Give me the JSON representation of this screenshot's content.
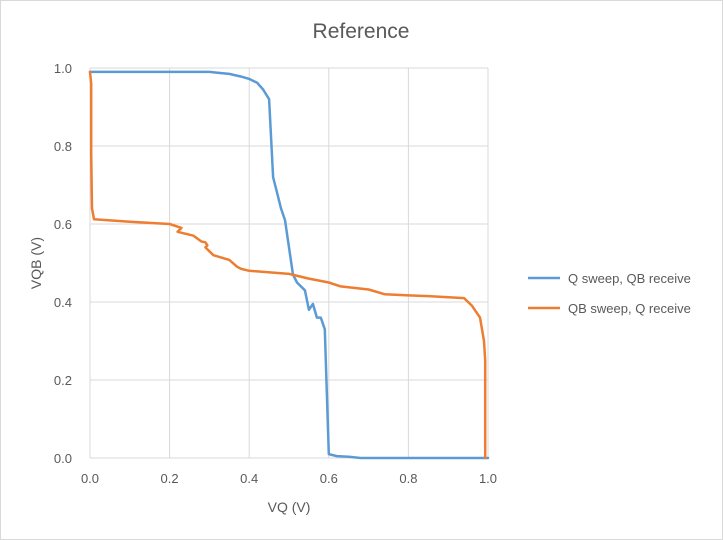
{
  "chart_data": {
    "type": "line",
    "title": "Reference",
    "xlabel": "VQ (V)",
    "ylabel": "VQB (V)",
    "xlim": [
      0,
      1.0
    ],
    "ylim": [
      0,
      1.0
    ],
    "x_ticks": [
      "0.0",
      "0.2",
      "0.4",
      "0.6",
      "0.8",
      "1.0"
    ],
    "y_ticks": [
      "0.0",
      "0.2",
      "0.4",
      "0.6",
      "0.8",
      "1.0"
    ],
    "grid": true,
    "legend_position": "right",
    "series": [
      {
        "name": "Q sweep, QB receive",
        "color": "#5b9bd5",
        "points": [
          [
            0.0,
            0.99
          ],
          [
            0.1,
            0.99
          ],
          [
            0.2,
            0.99
          ],
          [
            0.3,
            0.99
          ],
          [
            0.32,
            0.988
          ],
          [
            0.35,
            0.985
          ],
          [
            0.38,
            0.978
          ],
          [
            0.4,
            0.972
          ],
          [
            0.42,
            0.962
          ],
          [
            0.435,
            0.945
          ],
          [
            0.45,
            0.92
          ],
          [
            0.46,
            0.72
          ],
          [
            0.47,
            0.68
          ],
          [
            0.48,
            0.64
          ],
          [
            0.49,
            0.61
          ],
          [
            0.5,
            0.54
          ],
          [
            0.51,
            0.47
          ],
          [
            0.52,
            0.45
          ],
          [
            0.54,
            0.43
          ],
          [
            0.55,
            0.38
          ],
          [
            0.56,
            0.395
          ],
          [
            0.57,
            0.36
          ],
          [
            0.58,
            0.36
          ],
          [
            0.59,
            0.33
          ],
          [
            0.6,
            0.01
          ],
          [
            0.62,
            0.005
          ],
          [
            0.65,
            0.003
          ],
          [
            0.68,
            0.0
          ],
          [
            0.8,
            0.0
          ],
          [
            1.0,
            0.0
          ]
        ]
      },
      {
        "name": "QB sweep, Q receive",
        "color": "#ed7d31",
        "points": [
          [
            0.0,
            0.99
          ],
          [
            0.003,
            0.96
          ],
          [
            0.003,
            0.78
          ],
          [
            0.005,
            0.64
          ],
          [
            0.01,
            0.612
          ],
          [
            0.1,
            0.606
          ],
          [
            0.2,
            0.6
          ],
          [
            0.23,
            0.59
          ],
          [
            0.22,
            0.58
          ],
          [
            0.26,
            0.57
          ],
          [
            0.28,
            0.555
          ],
          [
            0.29,
            0.553
          ],
          [
            0.295,
            0.545
          ],
          [
            0.29,
            0.54
          ],
          [
            0.31,
            0.52
          ],
          [
            0.35,
            0.508
          ],
          [
            0.37,
            0.49
          ],
          [
            0.38,
            0.485
          ],
          [
            0.4,
            0.48
          ],
          [
            0.5,
            0.472
          ],
          [
            0.55,
            0.46
          ],
          [
            0.6,
            0.45
          ],
          [
            0.63,
            0.44
          ],
          [
            0.7,
            0.432
          ],
          [
            0.74,
            0.42
          ],
          [
            0.8,
            0.417
          ],
          [
            0.85,
            0.415
          ],
          [
            0.94,
            0.41
          ],
          [
            0.96,
            0.39
          ],
          [
            0.98,
            0.36
          ],
          [
            0.99,
            0.3
          ],
          [
            0.993,
            0.25
          ],
          [
            0.993,
            0.0
          ]
        ]
      }
    ]
  }
}
